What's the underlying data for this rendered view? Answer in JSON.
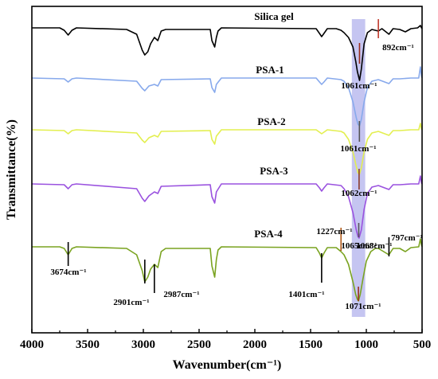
{
  "chart_data": {
    "type": "line",
    "xlabel": "Wavenumber(cm⁻¹)",
    "ylabel": "Transmittance(%)",
    "xlim": [
      4000,
      500
    ],
    "x_reversed": true,
    "xticks": [
      4000,
      3500,
      3000,
      2500,
      2000,
      1500,
      1000,
      500
    ],
    "grid": false,
    "legend": "none (series labeled inline)",
    "highlight_band": {
      "from": 1130,
      "to": 1010,
      "color": "#9e9ee8"
    },
    "series": [
      {
        "name": "Silica gel",
        "color": "#000000",
        "base": 0,
        "points": [
          [
            4000,
            0
          ],
          [
            3750,
            0
          ],
          [
            3710,
            3
          ],
          [
            3674,
            9
          ],
          [
            3640,
            3
          ],
          [
            3600,
            0
          ],
          [
            3150,
            2
          ],
          [
            3060,
            8
          ],
          [
            3010,
            28
          ],
          [
            2987,
            34
          ],
          [
            2960,
            30
          ],
          [
            2935,
            20
          ],
          [
            2901,
            12
          ],
          [
            2870,
            16
          ],
          [
            2840,
            4
          ],
          [
            2800,
            2
          ],
          [
            2400,
            2
          ],
          [
            2385,
            16
          ],
          [
            2360,
            24
          ],
          [
            2345,
            12
          ],
          [
            2330,
            4
          ],
          [
            2300,
            0
          ],
          [
            1450,
            1
          ],
          [
            1420,
            7
          ],
          [
            1401,
            11
          ],
          [
            1380,
            7
          ],
          [
            1350,
            1
          ],
          [
            1270,
            1
          ],
          [
            1227,
            3
          ],
          [
            1200,
            6
          ],
          [
            1160,
            12
          ],
          [
            1120,
            24
          ],
          [
            1095,
            42
          ],
          [
            1080,
            55
          ],
          [
            1061,
            66
          ],
          [
            1045,
            52
          ],
          [
            1020,
            20
          ],
          [
            990,
            6
          ],
          [
            950,
            2
          ],
          [
            892,
            4
          ],
          [
            860,
            1
          ],
          [
            797,
            8
          ],
          [
            760,
            1
          ],
          [
            700,
            2
          ],
          [
            650,
            5
          ],
          [
            600,
            1
          ],
          [
            540,
            0
          ],
          [
            515,
            -3
          ],
          [
            505,
            0
          ],
          [
            500,
            1
          ]
        ],
        "annotations": [
          {
            "text": "892cm⁻¹",
            "x": 892
          },
          {
            "text": "1061cm⁻¹",
            "x": 1061
          }
        ]
      },
      {
        "name": "PSA-1",
        "color": "#87a9ec",
        "base": 0,
        "points": [
          [
            4000,
            0
          ],
          [
            3710,
            1
          ],
          [
            3674,
            5
          ],
          [
            3640,
            1
          ],
          [
            3600,
            0
          ],
          [
            3060,
            4
          ],
          [
            3010,
            13
          ],
          [
            2987,
            16
          ],
          [
            2950,
            10
          ],
          [
            2901,
            8
          ],
          [
            2870,
            10
          ],
          [
            2840,
            2
          ],
          [
            2400,
            1
          ],
          [
            2385,
            12
          ],
          [
            2360,
            18
          ],
          [
            2345,
            8
          ],
          [
            2300,
            0
          ],
          [
            1450,
            0
          ],
          [
            1420,
            5
          ],
          [
            1401,
            8
          ],
          [
            1380,
            5
          ],
          [
            1350,
            0
          ],
          [
            1227,
            2
          ],
          [
            1200,
            4
          ],
          [
            1160,
            12
          ],
          [
            1120,
            30
          ],
          [
            1090,
            50
          ],
          [
            1075,
            58
          ],
          [
            1061,
            60
          ],
          [
            1045,
            52
          ],
          [
            1020,
            30
          ],
          [
            990,
            12
          ],
          [
            950,
            4
          ],
          [
            892,
            2
          ],
          [
            797,
            7
          ],
          [
            760,
            1
          ],
          [
            700,
            1
          ],
          [
            600,
            0
          ],
          [
            530,
            0
          ],
          [
            515,
            -14
          ],
          [
            505,
            -2
          ],
          [
            500,
            0
          ]
        ],
        "annotations": [
          {
            "text": "1061cm⁻¹",
            "x": 1061
          }
        ]
      },
      {
        "name": "PSA-2",
        "color": "#e3ef50",
        "base": 0,
        "points": [
          [
            4000,
            0
          ],
          [
            3710,
            1
          ],
          [
            3674,
            5
          ],
          [
            3640,
            1
          ],
          [
            3600,
            0
          ],
          [
            3060,
            4
          ],
          [
            3010,
            13
          ],
          [
            2987,
            16
          ],
          [
            2950,
            10
          ],
          [
            2901,
            7
          ],
          [
            2870,
            9
          ],
          [
            2840,
            2
          ],
          [
            2400,
            1
          ],
          [
            2385,
            12
          ],
          [
            2360,
            18
          ],
          [
            2345,
            8
          ],
          [
            2300,
            0
          ],
          [
            1450,
            0
          ],
          [
            1420,
            3
          ],
          [
            1401,
            5
          ],
          [
            1380,
            3
          ],
          [
            1350,
            0
          ],
          [
            1227,
            2
          ],
          [
            1200,
            4
          ],
          [
            1160,
            12
          ],
          [
            1120,
            28
          ],
          [
            1090,
            46
          ],
          [
            1075,
            54
          ],
          [
            1062,
            56
          ],
          [
            1045,
            48
          ],
          [
            1020,
            28
          ],
          [
            990,
            12
          ],
          [
            950,
            4
          ],
          [
            892,
            2
          ],
          [
            797,
            7
          ],
          [
            760,
            1
          ],
          [
            700,
            1
          ],
          [
            600,
            0
          ],
          [
            530,
            0
          ],
          [
            515,
            -8
          ],
          [
            505,
            -1
          ],
          [
            500,
            0
          ]
        ],
        "annotations": [
          {
            "text": "1062cm⁻¹",
            "x": 1062
          }
        ]
      },
      {
        "name": "PSA-3",
        "color": "#9a52df",
        "base": 0,
        "points": [
          [
            4000,
            0
          ],
          [
            3710,
            1
          ],
          [
            3674,
            6
          ],
          [
            3640,
            1
          ],
          [
            3600,
            0
          ],
          [
            3060,
            6
          ],
          [
            3010,
            18
          ],
          [
            2987,
            22
          ],
          [
            2950,
            15
          ],
          [
            2901,
            10
          ],
          [
            2870,
            12
          ],
          [
            2840,
            3
          ],
          [
            2400,
            1
          ],
          [
            2385,
            16
          ],
          [
            2360,
            24
          ],
          [
            2345,
            10
          ],
          [
            2300,
            0
          ],
          [
            1450,
            0
          ],
          [
            1420,
            5
          ],
          [
            1401,
            9
          ],
          [
            1380,
            5
          ],
          [
            1350,
            0
          ],
          [
            1227,
            2
          ],
          [
            1200,
            6
          ],
          [
            1160,
            16
          ],
          [
            1120,
            36
          ],
          [
            1090,
            58
          ],
          [
            1075,
            66
          ],
          [
            1065,
            68
          ],
          [
            1045,
            58
          ],
          [
            1020,
            32
          ],
          [
            990,
            12
          ],
          [
            950,
            4
          ],
          [
            892,
            2
          ],
          [
            797,
            7
          ],
          [
            760,
            1
          ],
          [
            700,
            1
          ],
          [
            600,
            0
          ],
          [
            530,
            0
          ],
          [
            515,
            -10
          ],
          [
            505,
            -1
          ],
          [
            500,
            0
          ]
        ],
        "annotations": [
          {
            "text": "1065cm⁻¹",
            "x": 1065
          }
        ]
      },
      {
        "name": "PSA-4",
        "color": "#7aa320",
        "base": 0,
        "points": [
          [
            4000,
            0
          ],
          [
            3750,
            0
          ],
          [
            3710,
            2
          ],
          [
            3674,
            10
          ],
          [
            3640,
            2
          ],
          [
            3600,
            0
          ],
          [
            3150,
            2
          ],
          [
            3060,
            10
          ],
          [
            3010,
            30
          ],
          [
            2987,
            44
          ],
          [
            2960,
            38
          ],
          [
            2935,
            28
          ],
          [
            2901,
            22
          ],
          [
            2870,
            26
          ],
          [
            2840,
            6
          ],
          [
            2800,
            2
          ],
          [
            2400,
            2
          ],
          [
            2385,
            24
          ],
          [
            2360,
            38
          ],
          [
            2345,
            16
          ],
          [
            2330,
            4
          ],
          [
            2300,
            0
          ],
          [
            1450,
            1
          ],
          [
            1420,
            8
          ],
          [
            1401,
            14
          ],
          [
            1380,
            8
          ],
          [
            1350,
            1
          ],
          [
            1270,
            1
          ],
          [
            1227,
            6
          ],
          [
            1200,
            10
          ],
          [
            1160,
            22
          ],
          [
            1120,
            44
          ],
          [
            1095,
            60
          ],
          [
            1080,
            66
          ],
          [
            1071,
            68
          ],
          [
            1055,
            60
          ],
          [
            1030,
            40
          ],
          [
            1000,
            18
          ],
          [
            960,
            6
          ],
          [
            920,
            2
          ],
          [
            892,
            2
          ],
          [
            797,
            10
          ],
          [
            760,
            2
          ],
          [
            700,
            2
          ],
          [
            650,
            6
          ],
          [
            600,
            1
          ],
          [
            530,
            0
          ],
          [
            515,
            -10
          ],
          [
            505,
            -2
          ],
          [
            500,
            0
          ]
        ],
        "annotations": [
          {
            "text": "3674cm⁻¹",
            "x": 3674
          },
          {
            "text": "2901cm⁻¹",
            "x": 2901
          },
          {
            "text": "2987cm⁻¹",
            "x": 2987
          },
          {
            "text": "1401cm⁻¹",
            "x": 1401
          },
          {
            "text": "1227cm⁻¹",
            "x": 1227
          },
          {
            "text": "1068cm⁻¹",
            "x": 1068
          },
          {
            "text": "797cm⁻¹",
            "x": 797
          },
          {
            "text": "1071cm⁻¹",
            "x": 1071
          }
        ]
      }
    ]
  }
}
